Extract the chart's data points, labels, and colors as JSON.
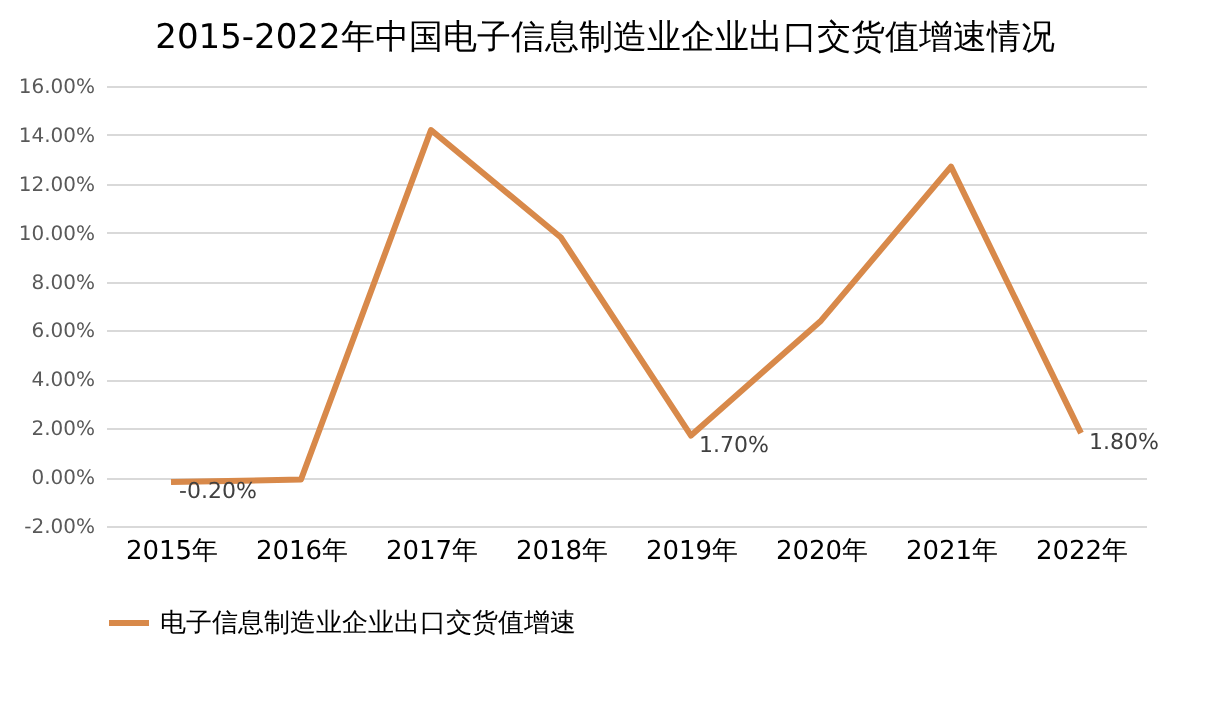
{
  "chart_data": {
    "type": "line",
    "title": "2015-2022年中国电子信息制造业企业出口交货值增速情况",
    "categories": [
      "2015年",
      "2016年",
      "2017年",
      "2018年",
      "2019年",
      "2020年",
      "2021年",
      "2022年"
    ],
    "series": [
      {
        "name": "电子信息制造业企业出口交货值增速",
        "color": "#d8894a",
        "values": [
          -0.2,
          -0.1,
          14.2,
          9.8,
          1.7,
          6.4,
          12.7,
          1.8
        ],
        "value_labels": [
          "-0.20%",
          null,
          null,
          null,
          "1.70%",
          null,
          null,
          "1.80%"
        ]
      }
    ],
    "ylim": [
      -2,
      16
    ],
    "yticks": [
      {
        "value": -2,
        "label": "-2.00%"
      },
      {
        "value": 0,
        "label": "0.00%"
      },
      {
        "value": 2,
        "label": "2.00%"
      },
      {
        "value": 4,
        "label": "4.00%"
      },
      {
        "value": 6,
        "label": "6.00%"
      },
      {
        "value": 8,
        "label": "8.00%"
      },
      {
        "value": 10,
        "label": "10.00%"
      },
      {
        "value": 12,
        "label": "12.00%"
      },
      {
        "value": 14,
        "label": "14.00%"
      },
      {
        "value": 16,
        "label": "16.00%"
      }
    ],
    "grid": "y",
    "legend": "bottom",
    "marker": "none",
    "line_style": "solid"
  }
}
